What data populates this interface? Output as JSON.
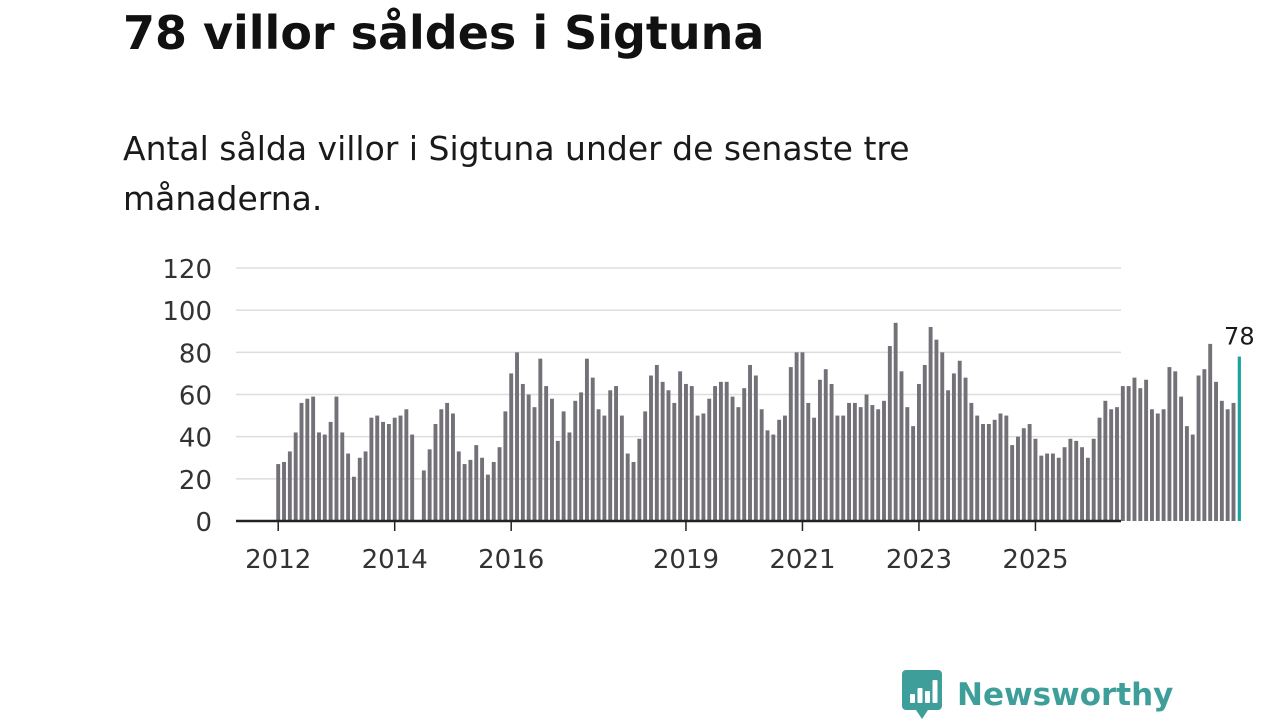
{
  "headline": "78 villor såldes i Sigtuna",
  "subtitle": "Antal sålda villor i Sigtuna under de senaste tre månaderna.",
  "brand": {
    "name": "Newsworthy",
    "color": "#3d9e9a"
  },
  "colors": {
    "bar": "#737177",
    "highlight": "#1aa3a0",
    "grid": "#dddddd",
    "axis": "#222222"
  },
  "chart_data": {
    "type": "bar",
    "title": "78 villor såldes i Sigtuna",
    "subtitle": "Antal sålda villor i Sigtuna under de senaste tre månaderna.",
    "xlabel": "",
    "ylabel": "",
    "ylim": [
      0,
      120
    ],
    "yticks": [
      0,
      20,
      40,
      60,
      80,
      100,
      120
    ],
    "grid": true,
    "x_start": "2012-01",
    "xtick_labels": [
      {
        "label": "2012",
        "index": 0
      },
      {
        "label": "2014",
        "index": 20
      },
      {
        "label": "2016",
        "index": 40
      },
      {
        "label": "2019",
        "index": 70
      },
      {
        "label": "2021",
        "index": 90
      },
      {
        "label": "2023",
        "index": 110
      },
      {
        "label": "2025",
        "index": 130
      }
    ],
    "highlight_label": "78",
    "values": [
      27,
      28,
      33,
      42,
      56,
      58,
      59,
      42,
      41,
      47,
      59,
      42,
      32,
      21,
      30,
      33,
      49,
      50,
      47,
      46,
      49,
      50,
      53,
      41,
      0,
      24,
      34,
      46,
      53,
      56,
      51,
      33,
      27,
      29,
      36,
      30,
      22,
      28,
      35,
      52,
      70,
      80,
      65,
      60,
      54,
      77,
      64,
      58,
      38,
      52,
      42,
      57,
      61,
      77,
      68,
      53,
      50,
      62,
      64,
      50,
      32,
      28,
      39,
      52,
      69,
      74,
      66,
      62,
      56,
      71,
      65,
      64,
      50,
      51,
      58,
      64,
      66,
      66,
      59,
      54,
      63,
      74,
      69,
      53,
      43,
      41,
      48,
      50,
      73,
      80,
      80,
      56,
      49,
      67,
      72,
      65,
      50,
      50,
      56,
      56,
      54,
      60,
      55,
      53,
      57,
      83,
      94,
      71,
      54,
      45,
      65,
      74,
      92,
      86,
      80,
      62,
      70,
      76,
      68,
      56,
      50,
      46,
      46,
      48,
      51,
      50,
      36,
      40,
      44,
      46,
      39,
      31,
      32,
      32,
      30,
      35,
      39,
      38,
      35,
      30,
      39,
      49,
      57,
      53,
      54,
      64,
      64,
      68,
      63,
      67,
      53,
      51,
      53,
      73,
      71,
      59,
      45,
      41,
      69,
      72,
      84,
      66,
      57,
      53,
      56,
      78
    ]
  }
}
